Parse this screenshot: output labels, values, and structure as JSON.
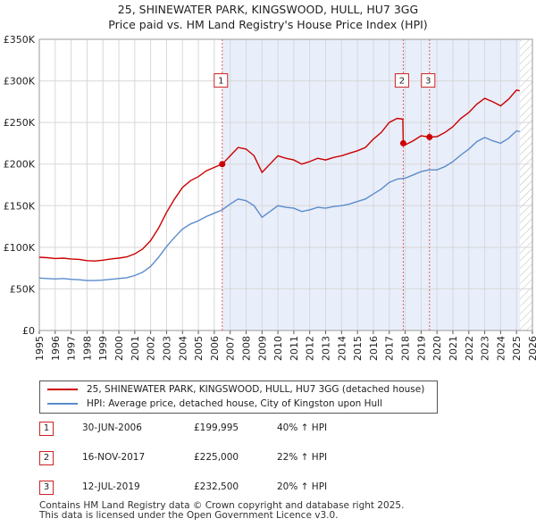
{
  "title_line1": "25, SHINEWATER PARK, KINGSWOOD, HULL, HU7 3GG",
  "title_line2": "Price paid vs. HM Land Registry's House Price Index (HPI)",
  "chart_data": {
    "type": "line",
    "xlim": [
      1995,
      2026
    ],
    "ylim": [
      0,
      350000
    ],
    "ytick_labels": [
      "£0",
      "£50K",
      "£100K",
      "£150K",
      "£200K",
      "£250K",
      "£300K",
      "£350K"
    ],
    "ytick_values": [
      0,
      50000,
      100000,
      150000,
      200000,
      250000,
      300000,
      350000
    ],
    "xtick_labels": [
      "1995",
      "1996",
      "1997",
      "1998",
      "1999",
      "2000",
      "2001",
      "2002",
      "2003",
      "2004",
      "2005",
      "2006",
      "2007",
      "2008",
      "2009",
      "2010",
      "2011",
      "2012",
      "2013",
      "2014",
      "2015",
      "2016",
      "2017",
      "2018",
      "2019",
      "2020",
      "2021",
      "2022",
      "2023",
      "2024",
      "2025",
      "2026"
    ],
    "grid": true,
    "shaded_ranges": [
      [
        2006.5,
        2025.2
      ]
    ],
    "series": [
      {
        "name": "25, SHINEWATER PARK, KINGSWOOD, HULL, HU7 3GG (detached house)",
        "color": "#cc0000",
        "points": [
          [
            1995,
            88000
          ],
          [
            1995.5,
            87500
          ],
          [
            1996,
            86500
          ],
          [
            1996.5,
            87000
          ],
          [
            1997,
            86000
          ],
          [
            1997.5,
            85500
          ],
          [
            1998,
            84000
          ],
          [
            1998.5,
            83500
          ],
          [
            1999,
            84500
          ],
          [
            1999.5,
            86000
          ],
          [
            2000,
            87000
          ],
          [
            2000.5,
            88500
          ],
          [
            2001,
            92000
          ],
          [
            2001.5,
            98000
          ],
          [
            2002,
            108000
          ],
          [
            2002.5,
            123000
          ],
          [
            2003,
            142000
          ],
          [
            2003.5,
            158000
          ],
          [
            2004,
            172000
          ],
          [
            2004.5,
            180000
          ],
          [
            2005,
            185000
          ],
          [
            2005.5,
            192000
          ],
          [
            2006,
            196000
          ],
          [
            2006.5,
            199995
          ],
          [
            2007,
            210000
          ],
          [
            2007.5,
            220000
          ],
          [
            2008,
            218000
          ],
          [
            2008.5,
            210000
          ],
          [
            2009,
            190000
          ],
          [
            2009.5,
            200000
          ],
          [
            2010,
            210000
          ],
          [
            2010.5,
            207000
          ],
          [
            2011,
            205000
          ],
          [
            2011.5,
            200000
          ],
          [
            2012,
            203000
          ],
          [
            2012.5,
            207000
          ],
          [
            2013,
            205000
          ],
          [
            2013.5,
            208000
          ],
          [
            2014,
            210000
          ],
          [
            2014.5,
            213000
          ],
          [
            2015,
            216000
          ],
          [
            2015.5,
            220000
          ],
          [
            2016,
            230000
          ],
          [
            2016.5,
            238000
          ],
          [
            2017,
            250000
          ],
          [
            2017.5,
            255000
          ],
          [
            2017.85,
            254000
          ],
          [
            2017.88,
            225000
          ],
          [
            2018,
            223000
          ],
          [
            2018.5,
            228000
          ],
          [
            2019,
            234000
          ],
          [
            2019.53,
            232500
          ],
          [
            2020,
            233000
          ],
          [
            2020.5,
            238000
          ],
          [
            2021,
            245000
          ],
          [
            2021.5,
            255000
          ],
          [
            2022,
            262000
          ],
          [
            2022.5,
            272000
          ],
          [
            2023,
            279000
          ],
          [
            2023.5,
            275000
          ],
          [
            2024,
            270000
          ],
          [
            2024.5,
            278000
          ],
          [
            2025,
            289000
          ],
          [
            2025.2,
            288000
          ]
        ]
      },
      {
        "name": "HPI: Average price, detached house, City of Kingston upon Hull",
        "color": "#5b8ccc",
        "points": [
          [
            1995,
            63000
          ],
          [
            1995.5,
            62500
          ],
          [
            1996,
            62000
          ],
          [
            1996.5,
            62500
          ],
          [
            1997,
            61500
          ],
          [
            1997.5,
            61000
          ],
          [
            1998,
            60000
          ],
          [
            1998.5,
            60000
          ],
          [
            1999,
            60500
          ],
          [
            1999.5,
            61500
          ],
          [
            2000,
            62500
          ],
          [
            2000.5,
            63500
          ],
          [
            2001,
            66000
          ],
          [
            2001.5,
            70000
          ],
          [
            2002,
            77000
          ],
          [
            2002.5,
            88000
          ],
          [
            2003,
            101000
          ],
          [
            2003.5,
            112000
          ],
          [
            2004,
            122000
          ],
          [
            2004.5,
            128000
          ],
          [
            2005,
            132000
          ],
          [
            2005.5,
            137000
          ],
          [
            2006,
            141000
          ],
          [
            2006.5,
            145000
          ],
          [
            2007,
            152000
          ],
          [
            2007.5,
            158000
          ],
          [
            2008,
            156000
          ],
          [
            2008.5,
            150000
          ],
          [
            2009,
            136000
          ],
          [
            2009.5,
            143000
          ],
          [
            2010,
            150000
          ],
          [
            2010.5,
            148000
          ],
          [
            2011,
            147000
          ],
          [
            2011.5,
            143000
          ],
          [
            2012,
            145000
          ],
          [
            2012.5,
            148000
          ],
          [
            2013,
            147000
          ],
          [
            2013.5,
            149000
          ],
          [
            2014,
            150000
          ],
          [
            2014.5,
            152000
          ],
          [
            2015,
            155000
          ],
          [
            2015.5,
            158000
          ],
          [
            2016,
            164000
          ],
          [
            2016.5,
            170000
          ],
          [
            2017,
            178000
          ],
          [
            2017.5,
            182000
          ],
          [
            2018,
            183000
          ],
          [
            2018.5,
            187000
          ],
          [
            2019,
            191000
          ],
          [
            2019.5,
            193000
          ],
          [
            2020,
            193000
          ],
          [
            2020.5,
            197000
          ],
          [
            2021,
            203000
          ],
          [
            2021.5,
            211000
          ],
          [
            2022,
            218000
          ],
          [
            2022.5,
            227000
          ],
          [
            2023,
            232000
          ],
          [
            2023.5,
            228000
          ],
          [
            2024,
            225000
          ],
          [
            2024.5,
            231000
          ],
          [
            2025,
            240000
          ],
          [
            2025.2,
            239000
          ]
        ]
      }
    ],
    "sale_points": [
      {
        "label": "1",
        "x": 2006.5,
        "y": 199995
      },
      {
        "label": "2",
        "x": 2017.88,
        "y": 225000
      },
      {
        "label": "3",
        "x": 2019.53,
        "y": 232500
      }
    ],
    "marker_label_y": 300000
  },
  "legend": {
    "items": [
      {
        "label": "25, SHINEWATER PARK, KINGSWOOD, HULL, HU7 3GG (detached house)",
        "color": "#cc0000"
      },
      {
        "label": "HPI: Average price, detached house, City of Kingston upon Hull",
        "color": "#5b8ccc"
      }
    ]
  },
  "sales": [
    {
      "num": "1",
      "date": "30-JUN-2006",
      "price": "£199,995",
      "hpi": "40% ↑ HPI"
    },
    {
      "num": "2",
      "date": "16-NOV-2017",
      "price": "£225,000",
      "hpi": "22% ↑ HPI"
    },
    {
      "num": "3",
      "date": "12-JUL-2019",
      "price": "£232,500",
      "hpi": "20% ↑ HPI"
    }
  ],
  "footer": {
    "line1": "Contains HM Land Registry data © Crown copyright and database right 2025.",
    "line2": "This data is licensed under the Open Government Licence v3.0."
  }
}
